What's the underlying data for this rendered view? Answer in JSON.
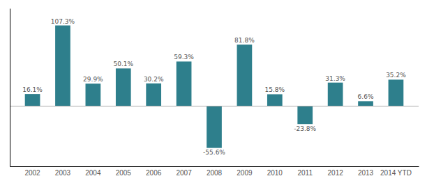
{
  "chart_data": {
    "type": "bar",
    "categories": [
      "2002",
      "2003",
      "2004",
      "2005",
      "2006",
      "2007",
      "2008",
      "2009",
      "2010",
      "2011",
      "2012",
      "2013",
      "2014 YTD"
    ],
    "values": [
      16.1,
      107.3,
      29.9,
      50.1,
      30.2,
      59.3,
      -55.6,
      81.8,
      15.8,
      -23.8,
      31.3,
      6.6,
      35.2
    ],
    "value_labels": [
      "16.1%",
      "107.3%",
      "29.9%",
      "50.1%",
      "30.2%",
      "59.3%",
      "-55.6%",
      "81.8%",
      "15.8%",
      "-23.8%",
      "31.3%",
      "6.6%",
      "35.2%"
    ],
    "color": "#2e7f8c",
    "ylim": [
      -80,
      130
    ],
    "data_labels": true,
    "tick_labels": "x"
  }
}
